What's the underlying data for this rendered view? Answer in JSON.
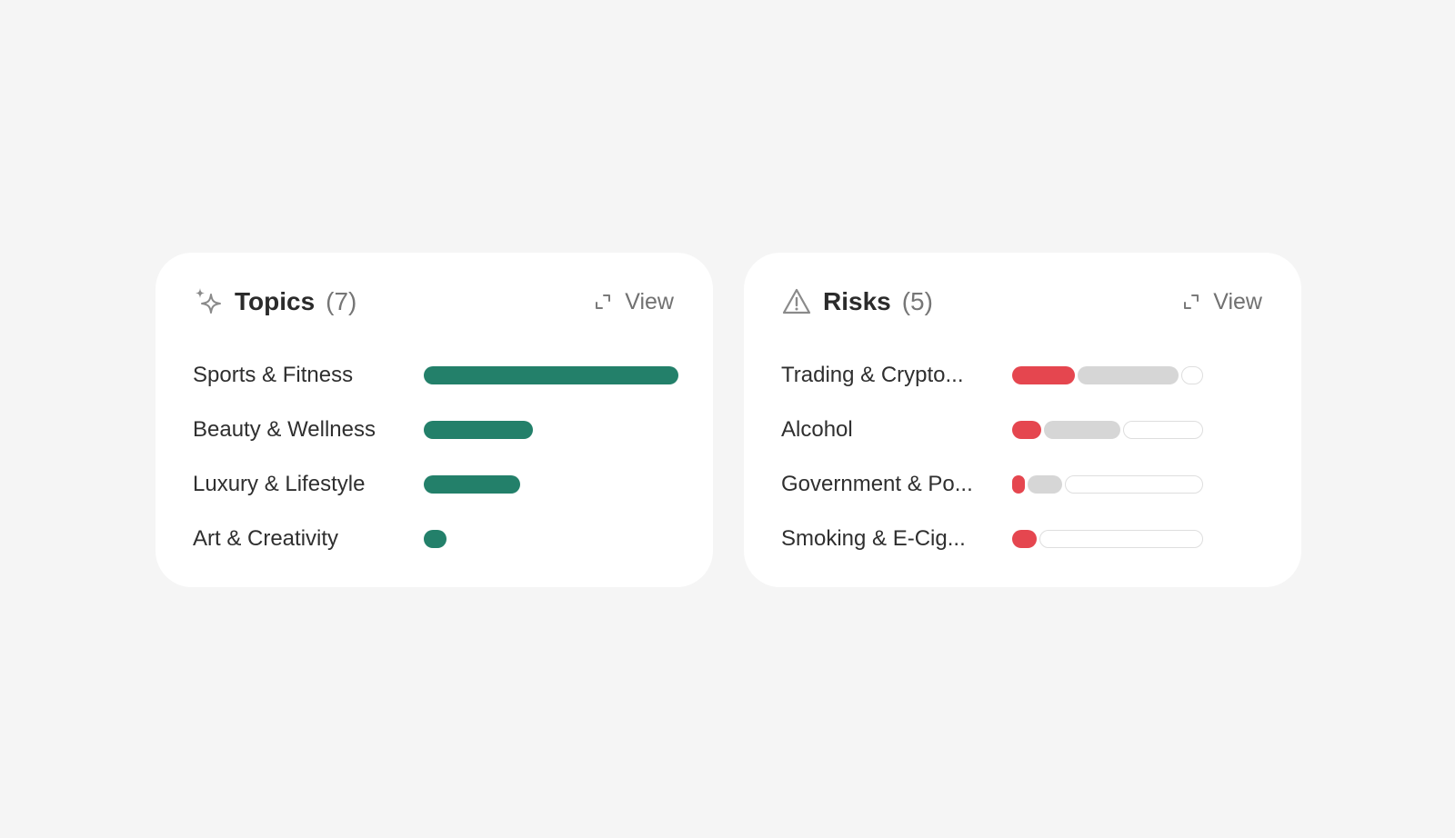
{
  "topics": {
    "title": "Topics",
    "count": "(7)",
    "icon": "sparkles-icon",
    "view_label": "View",
    "bar_color": "#23806a",
    "max_width_fraction": 1.0,
    "items": [
      {
        "label": "Sports & Fitness",
        "value": 1.0
      },
      {
        "label": "Beauty & Wellness",
        "value": 0.43
      },
      {
        "label": "Luxury & Lifestyle",
        "value": 0.38
      },
      {
        "label": "Art & Creativity",
        "value": 0.09
      }
    ]
  },
  "risks": {
    "title": "Risks",
    "count": "(5)",
    "icon": "warning-triangle-icon",
    "view_label": "View",
    "colors": {
      "high": "#e5464f",
      "medium": "#d6d6d6",
      "none": "#ffffff"
    },
    "items": [
      {
        "label": "Trading & Crypto...",
        "high": 0.33,
        "medium": 0.53
      },
      {
        "label": "Alcohol",
        "high": 0.15,
        "medium": 0.4
      },
      {
        "label": "Government & Po...",
        "high": 0.06,
        "medium": 0.18
      },
      {
        "label": "Smoking & E-Cig...",
        "high": 0.13,
        "medium": 0.0
      }
    ]
  }
}
